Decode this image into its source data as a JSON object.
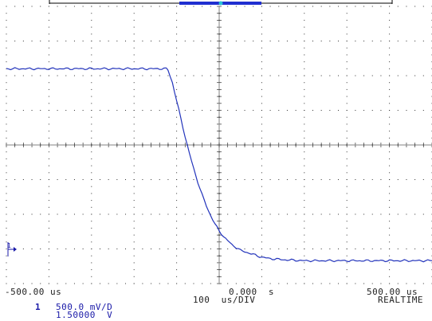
{
  "scope": {
    "time_left": "-500.00 us",
    "time_center": "0.000  s",
    "time_right": "500.00 us",
    "timebase": "100  us/DIV",
    "acq_mode": "REALTIME",
    "channel_number": "1",
    "channel_scale": "500.0 mV/D",
    "channel_offset": "1.50000  V",
    "trace_color": "#2233bb",
    "grid_color": "#333333",
    "memory_bar_color": "#1f2fd0",
    "trigger_marker_color": "#29c3d6",
    "ground_marker": "ground-arrow-icon"
  },
  "chart_data": {
    "type": "line",
    "title": "",
    "xlabel": "",
    "ylabel": "",
    "x_unit": "us",
    "y_unit": "V",
    "xlim": [
      -500,
      500
    ],
    "ylim": [
      0.5,
      2.5
    ],
    "grid": true,
    "series": [
      {
        "values_x": [
          -500,
          -450,
          -400,
          -350,
          -300,
          -250,
          -200,
          -150,
          -125,
          -120,
          -110,
          -100,
          -90,
          -80,
          -70,
          -60,
          -50,
          -40,
          -30,
          -20,
          -10,
          0,
          10,
          20,
          30,
          40,
          50,
          60,
          70,
          80,
          90,
          100,
          120,
          140,
          160,
          180,
          200,
          250,
          300,
          350,
          400,
          450,
          500
        ],
        "values_y": [
          2.05,
          2.05,
          2.05,
          2.05,
          2.05,
          2.05,
          2.05,
          2.05,
          2.05,
          2.04,
          1.95,
          1.82,
          1.69,
          1.56,
          1.44,
          1.33,
          1.23,
          1.14,
          1.06,
          0.99,
          0.93,
          0.88,
          0.84,
          0.81,
          0.78,
          0.76,
          0.74,
          0.73,
          0.72,
          0.71,
          0.7,
          0.69,
          0.68,
          0.675,
          0.67,
          0.668,
          0.665,
          0.665,
          0.665,
          0.665,
          0.665,
          0.665,
          0.665
        ]
      }
    ]
  }
}
